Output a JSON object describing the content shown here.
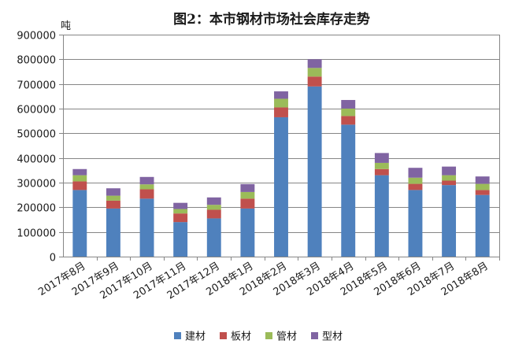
{
  "chart_data": {
    "type": "bar",
    "stacked": true,
    "title": "图2：本市钢材市场社会库存走势",
    "y_unit_label": "吨",
    "xlabel": "",
    "ylabel": "",
    "ylim": [
      0,
      900000
    ],
    "yticks": [
      0,
      100000,
      200000,
      300000,
      400000,
      500000,
      600000,
      700000,
      800000,
      900000
    ],
    "ytick_labels": [
      "0",
      "100000",
      "200000",
      "300000",
      "400000",
      "500000",
      "600000",
      "700000",
      "800000",
      "900000"
    ],
    "grid": true,
    "legend_position": "bottom",
    "categories": [
      "2017年8月",
      "2017年9月",
      "2017年10月",
      "2017年11月",
      "2017年12月",
      "2018年1月",
      "2018年2月",
      "2018年3月",
      "2018年4月",
      "2018年5月",
      "2018年6月",
      "2018年7月",
      "2018年8月"
    ],
    "series": [
      {
        "name": "建材",
        "color": "#4f81bd",
        "values": [
          270000,
          195000,
          235000,
          140000,
          155000,
          195000,
          565000,
          690000,
          535000,
          330000,
          270000,
          290000,
          250000
        ]
      },
      {
        "name": "板材",
        "color": "#c0504d",
        "values": [
          35000,
          32000,
          38000,
          35000,
          35000,
          40000,
          40000,
          40000,
          35000,
          25000,
          25000,
          18000,
          20000
        ]
      },
      {
        "name": "管材",
        "color": "#9bbb59",
        "values": [
          25000,
          20000,
          20000,
          18000,
          20000,
          27000,
          35000,
          35000,
          30000,
          25000,
          25000,
          22000,
          25000
        ]
      },
      {
        "name": "型材",
        "color": "#8064a2",
        "values": [
          25000,
          30000,
          30000,
          25000,
          30000,
          32000,
          30000,
          35000,
          35000,
          40000,
          40000,
          35000,
          30000
        ]
      }
    ]
  }
}
